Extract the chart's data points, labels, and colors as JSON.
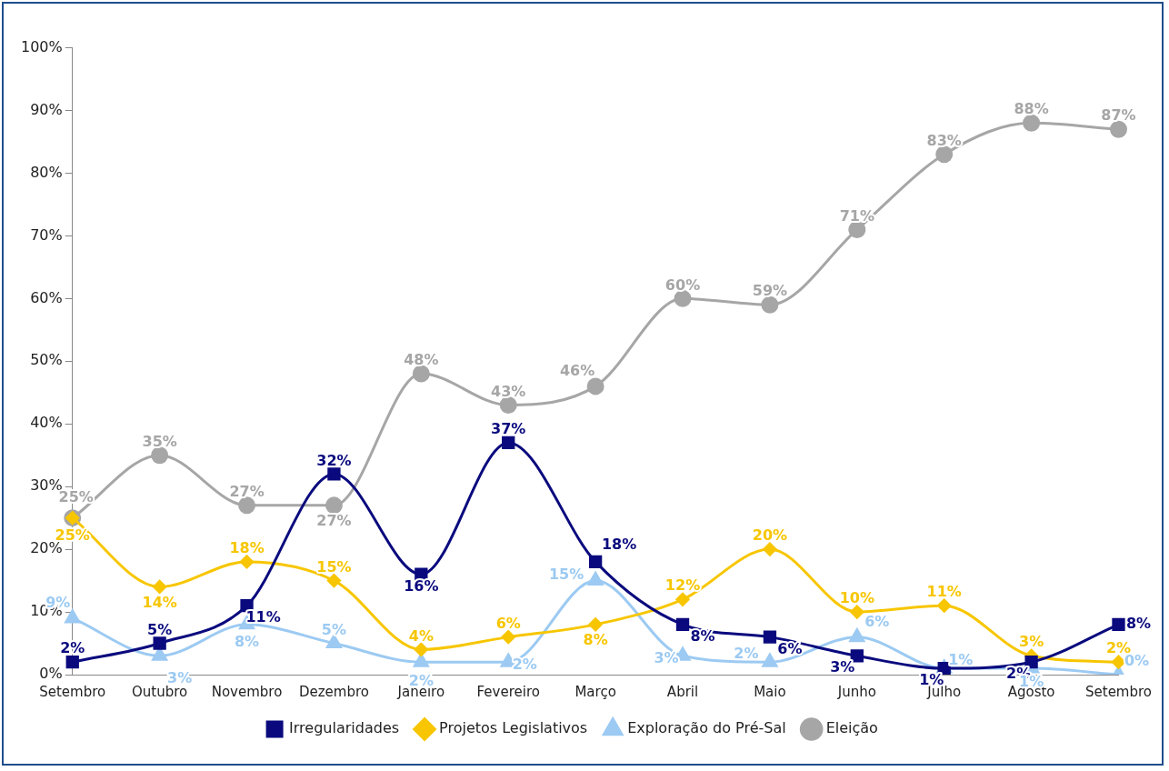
{
  "chart_data": {
    "type": "line",
    "categories": [
      "Setembro",
      "Outubro",
      "Novembro",
      "Dezembro",
      "Janeiro",
      "Fevereiro",
      "Março",
      "Abril",
      "Maio",
      "Junho",
      "Julho",
      "Agosto",
      "Setembro"
    ],
    "ylim": [
      0,
      100
    ],
    "yticks": [
      {
        "value": 0,
        "label": "0%"
      },
      {
        "value": 10,
        "label": "10%"
      },
      {
        "value": 20,
        "label": "20%"
      },
      {
        "value": 30,
        "label": "30%"
      },
      {
        "value": 40,
        "label": "40%"
      },
      {
        "value": 50,
        "label": "50%"
      },
      {
        "value": 60,
        "label": "60%"
      },
      {
        "value": 70,
        "label": "70%"
      },
      {
        "value": 80,
        "label": "80%"
      },
      {
        "value": 90,
        "label": "90%"
      },
      {
        "value": 100,
        "label": "100%"
      }
    ],
    "grid": false,
    "legend": "bottom",
    "series": [
      {
        "name": "Irregularidades",
        "color": "#0a0a7e",
        "marker": "square",
        "values": [
          2,
          5,
          11,
          32,
          16,
          37,
          18,
          8,
          6,
          3,
          1,
          2,
          8
        ],
        "value_labels": [
          "2%",
          "5%",
          "11%",
          "32%",
          "16%",
          "37%",
          "18%",
          "8%",
          "6%",
          "3%",
          "1%",
          "2%",
          "8%"
        ]
      },
      {
        "name": "Projetos Legislativos",
        "color": "#f7c600",
        "marker": "diamond",
        "values": [
          25,
          14,
          18,
          15,
          4,
          6,
          8,
          12,
          20,
          10,
          11,
          3,
          2
        ],
        "value_labels": [
          "25%",
          "14%",
          "18%",
          "15%",
          "4%",
          "6%",
          "8%",
          "12%",
          "20%",
          "10%",
          "11%",
          "3%",
          "2%"
        ]
      },
      {
        "name": "Exploração do Pré-Sal",
        "color": "#9ccaf2",
        "marker": "triangle",
        "values": [
          9,
          3,
          8,
          5,
          2,
          2,
          15,
          3,
          2,
          6,
          1,
          1,
          0
        ],
        "value_labels": [
          "9%",
          "3%",
          "8%",
          "5%",
          "2%",
          "2%",
          "15%",
          "3%",
          "2%",
          "6%",
          "1%",
          "1%",
          "0%"
        ]
      },
      {
        "name": "Eleição",
        "color": "#a6a6a6",
        "marker": "circle",
        "values": [
          25,
          35,
          27,
          27,
          48,
          43,
          46,
          60,
          59,
          71,
          83,
          88,
          87
        ],
        "value_labels": [
          "25%",
          "35%",
          "27%",
          "27%",
          "48%",
          "43%",
          "46%",
          "60%",
          "59%",
          "71%",
          "83%",
          "88%",
          "87%"
        ]
      }
    ]
  }
}
